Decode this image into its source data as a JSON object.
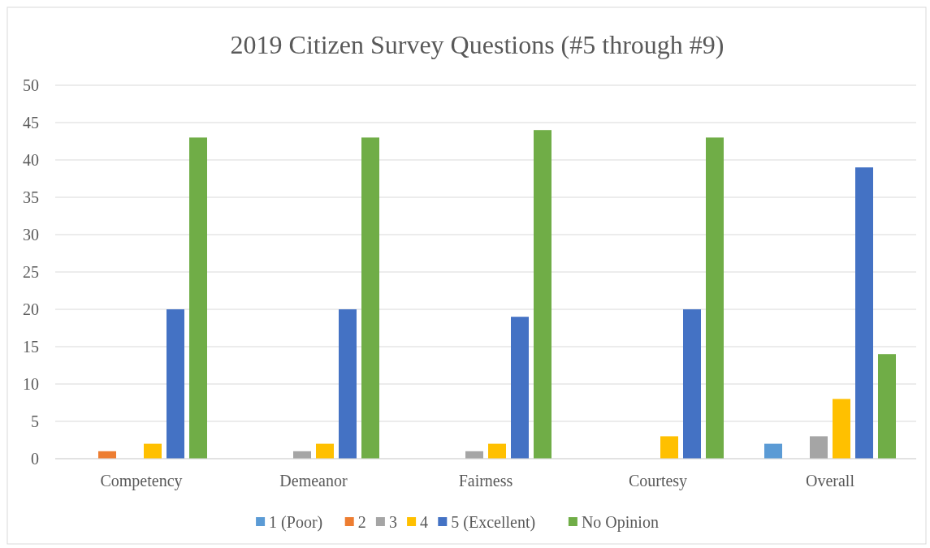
{
  "chart_data": {
    "type": "bar",
    "title": "2019 Citizen Survey Questions (#5 through #9)",
    "categories": [
      "Competency",
      "Demeanor",
      "Fairness",
      "Courtesy",
      "Overall"
    ],
    "series": [
      {
        "name": "1 (Poor)",
        "color": "#5b9bd5",
        "values": [
          0,
          0,
          0,
          0,
          2
        ]
      },
      {
        "name": "2",
        "color": "#ed7d31",
        "values": [
          1,
          0,
          0,
          0,
          0
        ]
      },
      {
        "name": "3",
        "color": "#a5a5a5",
        "values": [
          0,
          1,
          1,
          0,
          3
        ]
      },
      {
        "name": "4",
        "color": "#ffc000",
        "values": [
          2,
          2,
          2,
          3,
          8
        ]
      },
      {
        "name": "5 (Excellent)",
        "color": "#4472c4",
        "values": [
          20,
          20,
          19,
          20,
          39
        ]
      },
      {
        "name": "No Opinion",
        "color": "#70ad47",
        "values": [
          43,
          43,
          44,
          43,
          14
        ]
      }
    ],
    "ylim": [
      0,
      50
    ],
    "yticks": [
      0,
      5,
      10,
      15,
      20,
      25,
      30,
      35,
      40,
      45,
      50
    ],
    "grid": "y",
    "legend": "bottom"
  }
}
